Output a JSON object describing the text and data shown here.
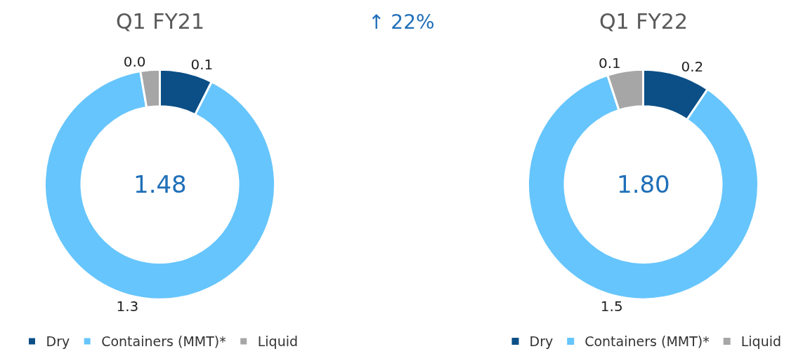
{
  "chart_data": [
    {
      "type": "donut",
      "title": "Q1 FY21",
      "categories": [
        "Dry",
        "Containers (MMT)*",
        "Liquid"
      ],
      "values": [
        0.11,
        1.33,
        0.04
      ],
      "value_labels": [
        "0.1",
        "1.3",
        "0.0"
      ],
      "colors": [
        "#0b4f86",
        "#66c5fc",
        "#a6a6a6"
      ],
      "legend": "bottom",
      "annotations": [
        "1.48",
        "↑ 22%"
      ]
    },
    {
      "type": "donut",
      "title": "Q1 FY22",
      "categories": [
        "Dry",
        "Containers (MMT)*",
        "Liquid"
      ],
      "values": [
        0.17,
        1.54,
        0.09
      ],
      "value_labels": [
        "0.2",
        "1.5",
        "0.1"
      ],
      "colors": [
        "#0b4f86",
        "#66c5fc",
        "#a6a6a6"
      ],
      "legend": "bottom",
      "annotations": [
        "1.80"
      ]
    }
  ]
}
